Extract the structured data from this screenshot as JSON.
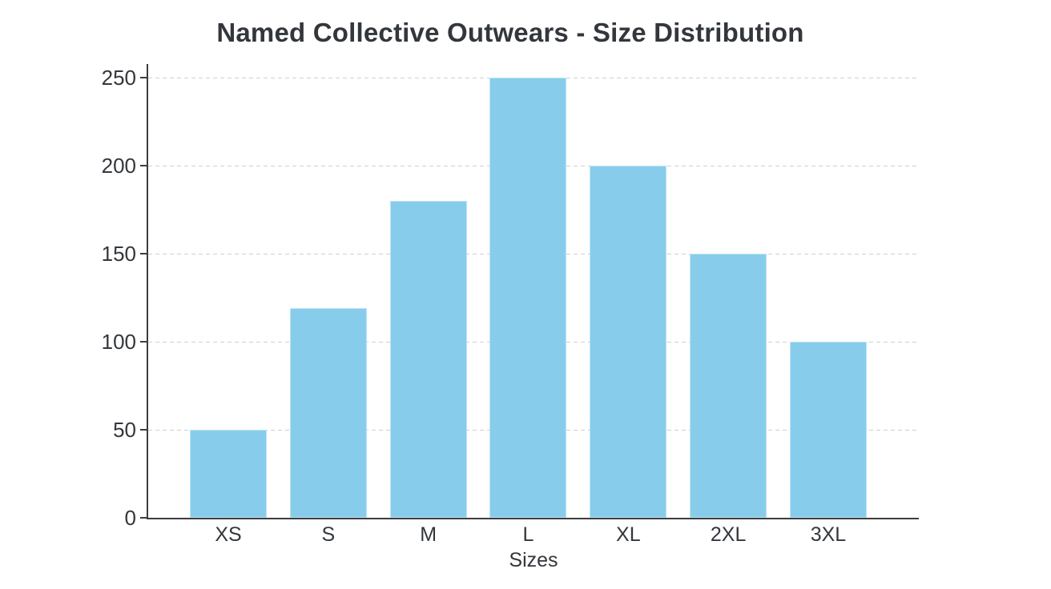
{
  "chart_data": {
    "type": "bar",
    "title": "Named Collective Outwears - Size Distribution",
    "xlabel": "Sizes",
    "ylabel": "",
    "categories": [
      "XS",
      "S",
      "M",
      "L",
      "XL",
      "2XL",
      "3XL"
    ],
    "values": [
      50,
      119,
      180,
      250,
      200,
      150,
      100
    ],
    "ylim": [
      0,
      250
    ],
    "yticks": [
      0,
      50,
      100,
      150,
      200,
      250
    ],
    "grid": "horizontal-dashed",
    "legend": "none",
    "colors": {
      "bar_fill": "#87CDEB",
      "axis_line": "#3d3d3d",
      "grid_line": "#cfcfcf",
      "text": "#33373c",
      "background": "#ffffff"
    }
  }
}
